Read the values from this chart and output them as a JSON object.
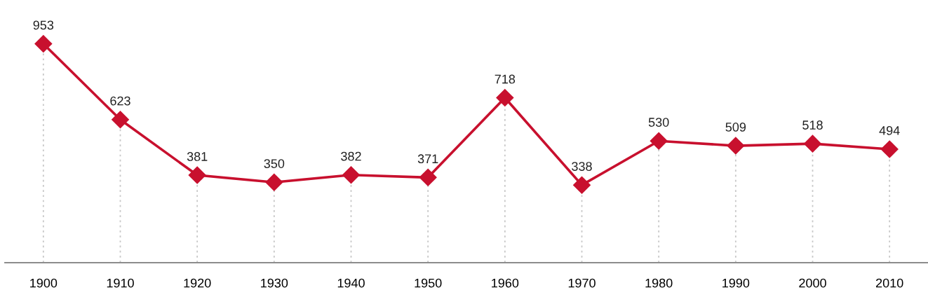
{
  "chart_data": {
    "type": "line",
    "categories": [
      "1900",
      "1910",
      "1920",
      "1930",
      "1940",
      "1950",
      "1960",
      "1970",
      "1980",
      "1990",
      "2000",
      "2010"
    ],
    "series": [
      {
        "color": "#c8102e",
        "values": [
          953,
          623,
          381,
          350,
          382,
          371,
          718,
          338,
          530,
          509,
          518,
          494
        ]
      }
    ],
    "data_labels": true,
    "marker": "diamond",
    "line_style": "solid",
    "grid": "x",
    "tick_labels": "x"
  }
}
